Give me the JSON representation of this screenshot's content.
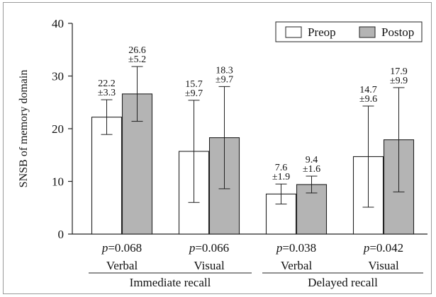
{
  "chart_data": {
    "type": "bar",
    "ylabel": "SNSB of memory domain",
    "ylim": [
      0,
      40
    ],
    "yticks": [
      0,
      10,
      20,
      30,
      40
    ],
    "legend_position": "top-right",
    "series": [
      {
        "name": "Preop",
        "color": "#ffffff",
        "values": [
          22.2,
          15.7,
          7.6,
          14.7
        ],
        "sd": [
          3.3,
          9.7,
          1.9,
          9.6
        ],
        "labels": [
          [
            "22.2",
            "±3.3"
          ],
          [
            "15.7",
            "±9.7"
          ],
          [
            "7.6",
            "±1.9"
          ],
          [
            "14.7",
            "±9.6"
          ]
        ]
      },
      {
        "name": "Postop",
        "color": "#b4b4b4",
        "values": [
          26.6,
          18.3,
          9.4,
          17.9
        ],
        "sd": [
          5.2,
          9.7,
          1.6,
          9.9
        ],
        "labels": [
          [
            "26.6",
            "±5.2"
          ],
          [
            "18.3",
            "±9.7"
          ],
          [
            "9.4",
            "±1.6"
          ],
          [
            "17.9",
            "±9.9"
          ]
        ]
      }
    ],
    "categories": [
      "Verbal",
      "Visual",
      "Verbal",
      "Visual"
    ],
    "pvalues": [
      {
        "p": "p",
        "rest": "=0.068"
      },
      {
        "p": "p",
        "rest": "=0.066"
      },
      {
        "p": "p",
        "rest": "=0.038"
      },
      {
        "p": "p",
        "rest": "=0.042"
      }
    ],
    "groups": [
      {
        "label": "Immediate recall",
        "categories": [
          0,
          1
        ]
      },
      {
        "label": "Delayed recall",
        "categories": [
          2,
          3
        ]
      }
    ]
  }
}
